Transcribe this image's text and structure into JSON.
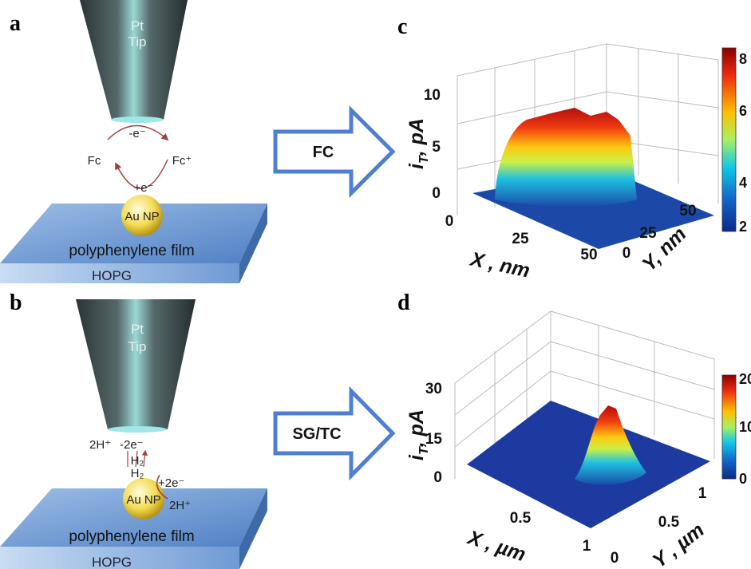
{
  "panels": {
    "a": {
      "label": "a",
      "tip_line1": "Pt",
      "tip_line2": "Tip",
      "top_reaction": "-e⁻",
      "left_species": "Fc",
      "right_species": "Fc⁺",
      "bottom_reaction": "+e⁻",
      "particle": "Au NP",
      "film": "polyphenylene film",
      "substrate": "HOPG"
    },
    "b": {
      "label": "b",
      "tip_line1": "Pt",
      "tip_line2": "Tip",
      "protons_top": "2H⁺",
      "tip_reaction": "-2e⁻",
      "h2_top": "H₂",
      "h2_bottom": "H₂",
      "particle_reaction": "+2e⁻",
      "protons_bottom": "2H⁺",
      "particle": "Au NP",
      "film": "polyphenylene film",
      "substrate": "HOPG"
    },
    "arrow_top": "FC",
    "arrow_bottom": "SG/TC",
    "c": {
      "label": "c",
      "z_label": {
        "main": "i",
        "sub": "T",
        "rest": ", pA"
      },
      "z_ticks": [
        "0",
        "5",
        "10"
      ],
      "x_label": "X , nm",
      "x_ticks": [
        "0",
        "25",
        "50"
      ],
      "y_label": "Y, nm",
      "y_ticks": [
        "0",
        "25",
        "50"
      ],
      "colorbar_ticks": [
        "2",
        "4",
        "6",
        "8"
      ]
    },
    "d": {
      "label": "d",
      "z_label": {
        "main": "i",
        "sub": "T",
        "rest": ", pA"
      },
      "z_ticks": [
        "0",
        "15",
        "30"
      ],
      "x_label": "X , µm",
      "x_ticks": [
        "0.5",
        "1"
      ],
      "y_label": "Y , µm",
      "y_ticks": [
        "0",
        "0.5",
        "1"
      ],
      "colorbar_ticks": [
        "0",
        "10",
        "20"
      ]
    }
  }
}
